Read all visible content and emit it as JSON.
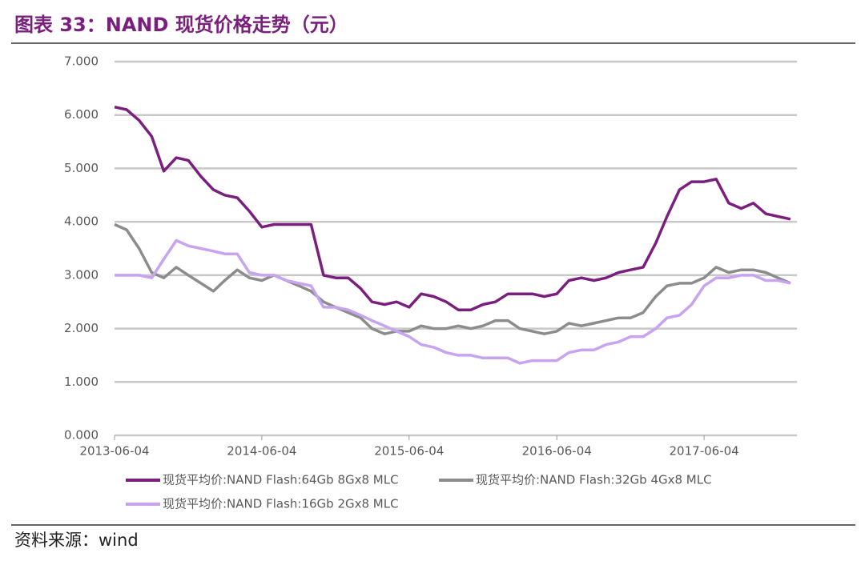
{
  "chart_data": {
    "type": "line",
    "title": "图表 33：NAND 现货价格走势（元）",
    "source": "资料来源：wind",
    "x": [
      "2013-06-04",
      "2013-07-04",
      "2013-08-04",
      "2013-09-04",
      "2013-10-04",
      "2013-11-04",
      "2013-12-04",
      "2014-01-04",
      "2014-02-04",
      "2014-03-04",
      "2014-04-04",
      "2014-05-04",
      "2014-06-04",
      "2014-07-04",
      "2014-08-04",
      "2014-09-04",
      "2014-10-04",
      "2014-11-04",
      "2014-12-04",
      "2015-01-04",
      "2015-02-04",
      "2015-03-04",
      "2015-04-04",
      "2015-05-04",
      "2015-06-04",
      "2015-07-04",
      "2015-08-04",
      "2015-09-04",
      "2015-10-04",
      "2015-11-04",
      "2015-12-04",
      "2016-01-04",
      "2016-02-04",
      "2016-03-04",
      "2016-04-04",
      "2016-05-04",
      "2016-06-04",
      "2016-07-04",
      "2016-08-04",
      "2016-09-04",
      "2016-10-04",
      "2016-11-04",
      "2016-12-04",
      "2017-01-04",
      "2017-02-04",
      "2017-03-04",
      "2017-04-04",
      "2017-05-04",
      "2017-06-04",
      "2017-07-04",
      "2017-08-04",
      "2017-09-04",
      "2017-10-04",
      "2017-11-04",
      "2017-12-04",
      "2018-01-04"
    ],
    "series": [
      {
        "name": "现货平均价:NAND Flash:64Gb 8Gx8 MLC",
        "color": "#7b1f7f",
        "values": [
          6.15,
          6.1,
          5.9,
          5.6,
          4.95,
          5.2,
          5.15,
          4.85,
          4.6,
          4.5,
          4.45,
          4.2,
          3.9,
          3.95,
          3.95,
          3.95,
          3.95,
          3.0,
          2.95,
          2.95,
          2.75,
          2.5,
          2.45,
          2.5,
          2.4,
          2.65,
          2.6,
          2.5,
          2.35,
          2.35,
          2.45,
          2.5,
          2.65,
          2.65,
          2.65,
          2.6,
          2.65,
          2.9,
          2.95,
          2.9,
          2.95,
          3.05,
          3.1,
          3.15,
          3.6,
          4.1,
          4.6,
          4.75,
          4.75,
          4.8,
          4.35,
          4.25,
          4.35,
          4.15,
          4.1,
          4.05
        ]
      },
      {
        "name": "现货平均价:NAND Flash:32Gb 4Gx8 MLC",
        "color": "#8c8c8c",
        "values": [
          3.95,
          3.85,
          3.5,
          3.05,
          2.95,
          3.15,
          3.0,
          2.85,
          2.7,
          2.9,
          3.1,
          2.95,
          2.9,
          3.0,
          2.9,
          2.8,
          2.7,
          2.5,
          2.4,
          2.3,
          2.2,
          2.0,
          1.9,
          1.95,
          1.95,
          2.05,
          2.0,
          2.0,
          2.05,
          2.0,
          2.05,
          2.15,
          2.15,
          2.0,
          1.95,
          1.9,
          1.95,
          2.1,
          2.05,
          2.1,
          2.15,
          2.2,
          2.2,
          2.3,
          2.6,
          2.8,
          2.85,
          2.85,
          2.95,
          3.15,
          3.05,
          3.1,
          3.1,
          3.05,
          2.95,
          2.85
        ]
      },
      {
        "name": "现货平均价:NAND Flash:16Gb 2Gx8 MLC",
        "color": "#c7a3f0",
        "values": [
          3.0,
          3.0,
          3.0,
          2.95,
          3.3,
          3.65,
          3.55,
          3.5,
          3.45,
          3.4,
          3.4,
          3.05,
          3.0,
          3.0,
          2.9,
          2.85,
          2.8,
          2.4,
          2.4,
          2.35,
          2.25,
          2.15,
          2.05,
          1.95,
          1.85,
          1.7,
          1.65,
          1.55,
          1.5,
          1.5,
          1.45,
          1.45,
          1.45,
          1.35,
          1.4,
          1.4,
          1.4,
          1.55,
          1.6,
          1.6,
          1.7,
          1.75,
          1.85,
          1.85,
          2.0,
          2.2,
          2.25,
          2.45,
          2.8,
          2.95,
          2.95,
          3.0,
          3.0,
          2.9,
          2.9,
          2.85
        ]
      }
    ],
    "xlim": [
      "2013-06-04",
      "2018-01-20"
    ],
    "xticks": [
      "2013-06-04",
      "2014-06-04",
      "2015-06-04",
      "2016-06-04",
      "2017-06-04"
    ],
    "ylim": [
      0,
      7
    ],
    "yticks": [
      {
        "value": 0,
        "label": "0.000"
      },
      {
        "value": 1,
        "label": "1.000"
      },
      {
        "value": 2,
        "label": "2.000"
      },
      {
        "value": 3,
        "label": "3.000"
      },
      {
        "value": 4,
        "label": "4.000"
      },
      {
        "value": 5,
        "label": "5.000"
      },
      {
        "value": 6,
        "label": "6.000"
      },
      {
        "value": 7,
        "label": "7.000"
      }
    ],
    "grid": true
  }
}
